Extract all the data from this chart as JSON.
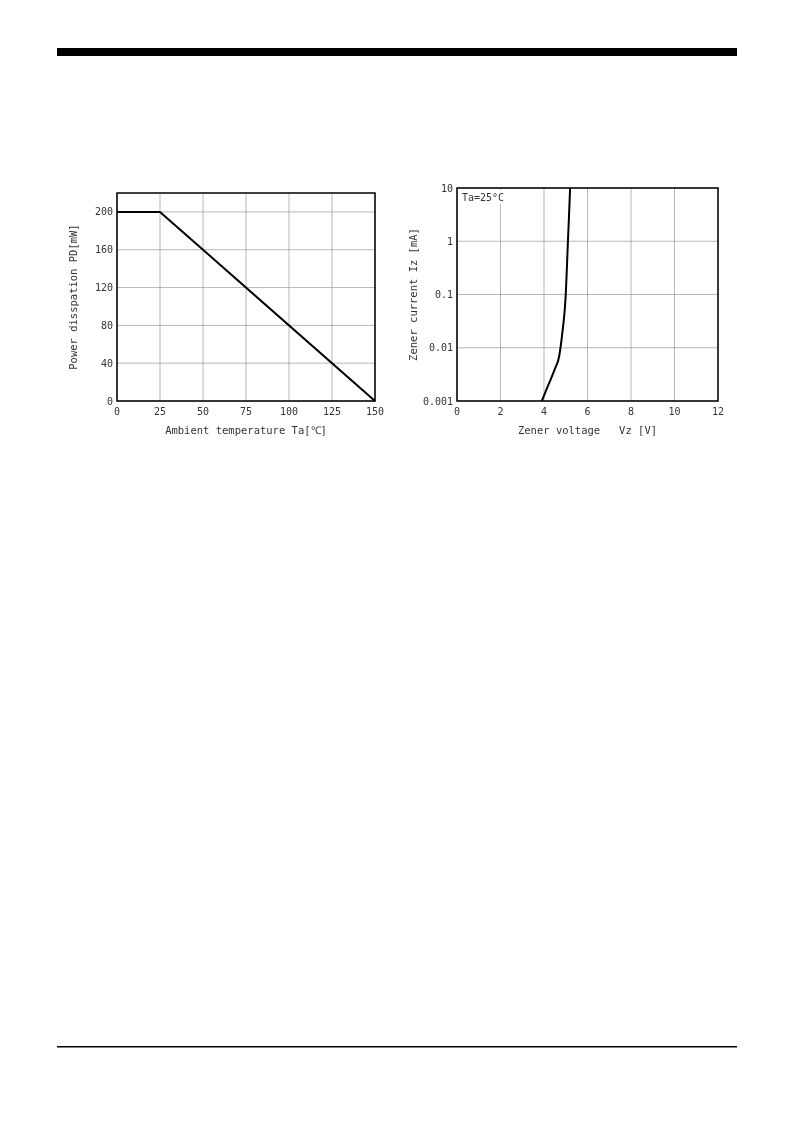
{
  "chart_data": [
    {
      "type": "line",
      "xlabel": "Ambient temperature Ta[℃]",
      "ylabel": "Power disspation PD[mW]",
      "x": [
        0,
        25,
        150
      ],
      "series": [
        {
          "color": "#000000",
          "values": [
            200,
            200,
            0
          ]
        }
      ],
      "xlim": [
        0,
        150
      ],
      "ylim": [
        0,
        220
      ],
      "xticks": [
        0,
        25,
        50,
        75,
        100,
        125,
        150
      ],
      "yticks": [
        0,
        40,
        80,
        120,
        160,
        200
      ],
      "grid": true
    },
    {
      "type": "line",
      "xlabel": "Zener voltage   Vz [V]",
      "ylabel": "Zener current Iz [mA]",
      "annotations": [
        "Ta=25°C"
      ],
      "x": [
        3.9,
        4.2,
        4.5,
        4.7,
        4.85,
        4.95,
        5.0,
        5.05,
        5.1,
        5.15,
        5.2
      ],
      "series": [
        {
          "color": "#000000",
          "values": [
            0.001,
            0.002,
            0.004,
            0.007,
            0.02,
            0.05,
            0.1,
            0.3,
            1,
            3,
            10
          ]
        }
      ],
      "xlim": [
        0,
        12
      ],
      "ylim": [
        0.001,
        10
      ],
      "xticks": [
        0,
        2,
        4,
        6,
        8,
        10,
        12
      ],
      "yticks": [
        0.001,
        0.01,
        0.1,
        1,
        10
      ],
      "log": "y",
      "grid": true
    }
  ]
}
